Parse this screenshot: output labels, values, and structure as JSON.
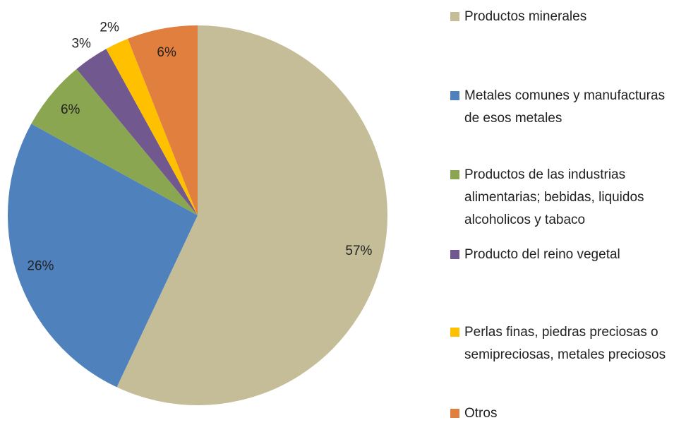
{
  "chart_data": {
    "type": "pie",
    "labels": [
      "Productos minerales",
      "Metales comunes y manufacturas de esos metales",
      "Productos de las industrias alimentarias; bebidas, liquidos alcoholicos y tabaco",
      "Producto del reino vegetal",
      "Perlas finas, piedras preciosas o semipreciosas, metales preciosos",
      "Otros"
    ],
    "values": [
      57,
      26,
      6,
      3,
      2,
      6
    ],
    "value_labels": [
      "57%",
      "26%",
      "6%",
      "3%",
      "2%",
      "6%"
    ],
    "colors": [
      "#c4bd97",
      "#4f81bd",
      "#8ba650",
      "#71588f",
      "#ffc000",
      "#e07f3e"
    ]
  }
}
